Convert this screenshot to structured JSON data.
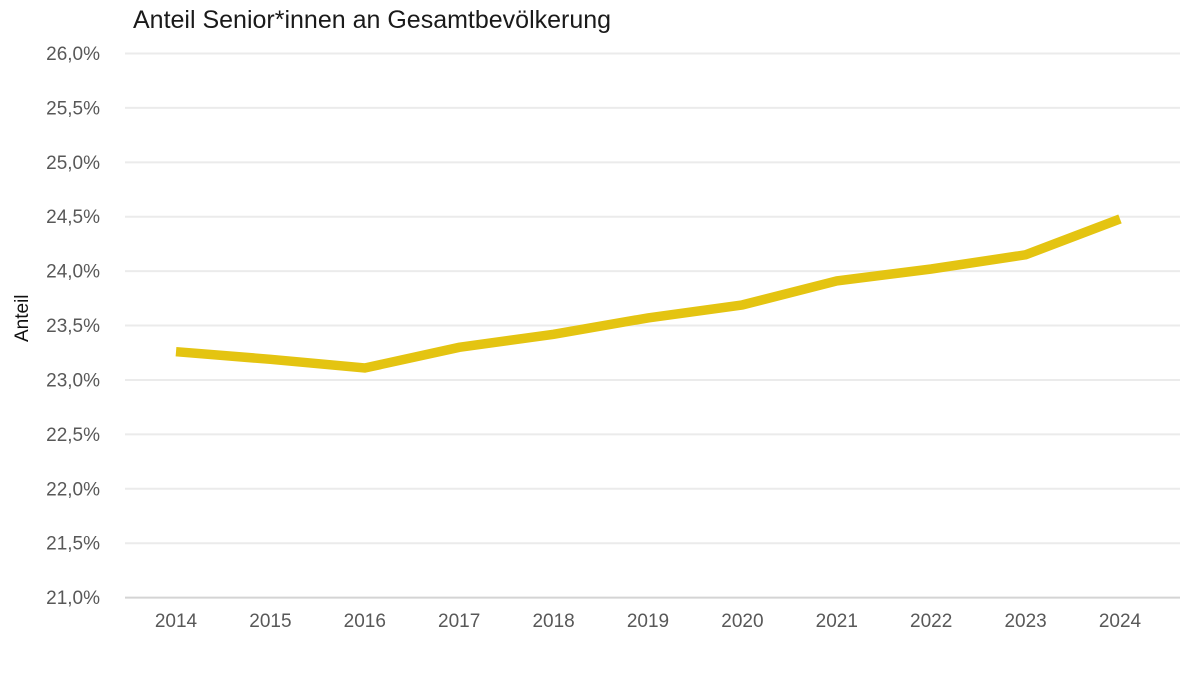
{
  "chart_data": {
    "type": "line",
    "title": "Anteil Senior*innen an Gesamtbevölkerung",
    "ylabel": "Anteil",
    "xlabel": "",
    "categories": [
      "2014",
      "2015",
      "2016",
      "2017",
      "2018",
      "2019",
      "2020",
      "2021",
      "2022",
      "2023",
      "2024"
    ],
    "series": [
      {
        "name": "Anteil Senior*innen an Gesamtbevölkerung",
        "values": [
          23.26,
          23.19,
          23.11,
          23.3,
          23.42,
          23.57,
          23.69,
          23.91,
          24.02,
          24.15,
          24.48
        ]
      }
    ],
    "ylim": [
      21.0,
      26.0
    ],
    "yticks": [
      {
        "value": 26.0,
        "label": "26,0%"
      },
      {
        "value": 25.5,
        "label": "25,5%"
      },
      {
        "value": 25.0,
        "label": "25,0%"
      },
      {
        "value": 24.5,
        "label": "24,5%"
      },
      {
        "value": 24.0,
        "label": "24,0%"
      },
      {
        "value": 23.5,
        "label": "23,5%"
      },
      {
        "value": 23.0,
        "label": "23,0%"
      },
      {
        "value": 22.5,
        "label": "22,5%"
      },
      {
        "value": 22.0,
        "label": "22,0%"
      },
      {
        "value": 21.5,
        "label": "21,5%"
      },
      {
        "value": 21.0,
        "label": "21,0%"
      }
    ],
    "grid": "horizontal",
    "legend": "none",
    "colors": {
      "line": "#E4C411",
      "gridline": "#EBEBEB",
      "baseline": "#D4D4D4",
      "tick_text": "#585858",
      "title_text": "#1A1A1A",
      "background": "#FFFFFF"
    }
  }
}
